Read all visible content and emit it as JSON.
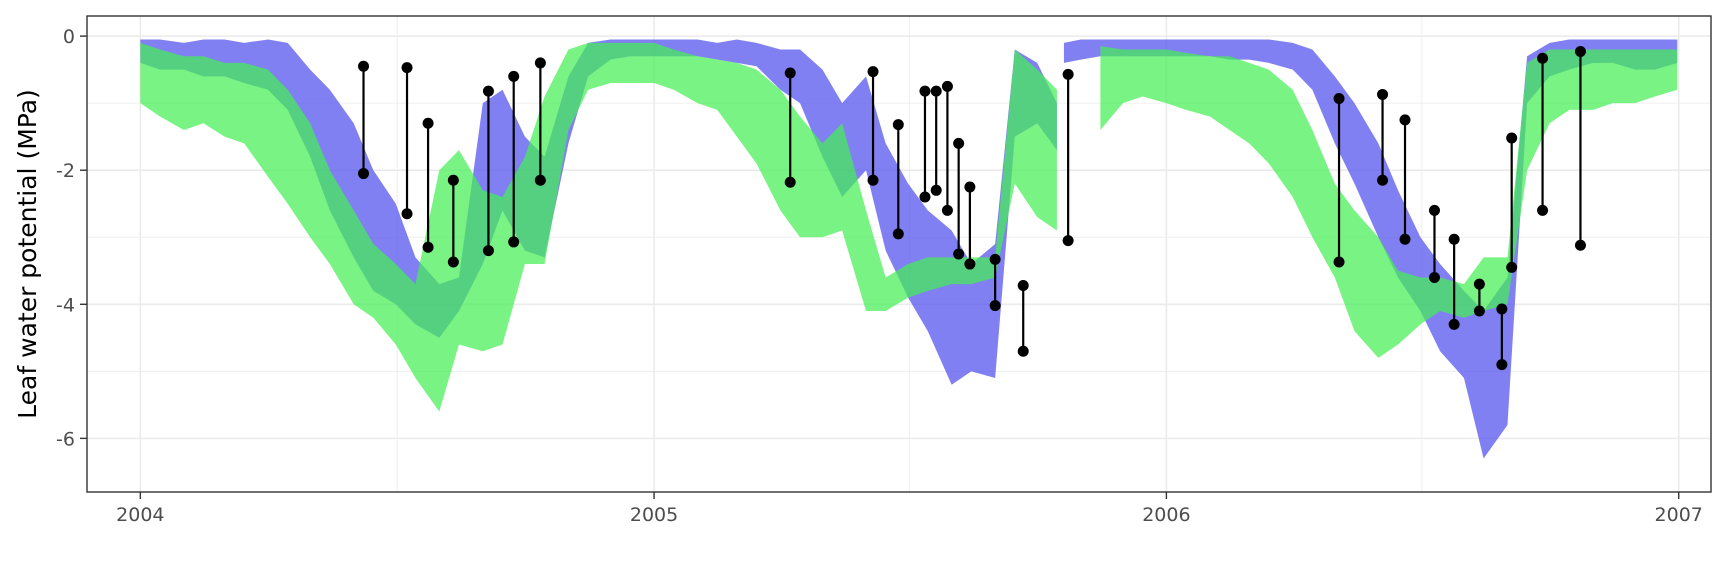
{
  "chart_data": {
    "type": "area",
    "title": "",
    "xlabel": "",
    "ylabel": "Leaf water potential (MPa)",
    "xlim": [
      "2003-11-24",
      "2007-01-24"
    ],
    "ylim": [
      -6.8,
      0.3
    ],
    "x_ticks": [
      "2004",
      "2005",
      "2006",
      "2007"
    ],
    "y_ticks": [
      0,
      -2,
      -4,
      -6
    ],
    "grid": true,
    "legend": "none",
    "colors": {
      "series_a": "#5555ee",
      "series_b": "#44ee55",
      "points": "#000000",
      "grid": "#ebebeb",
      "panel_border": "#333333"
    },
    "series": [
      {
        "color": "#5555ee",
        "segments": [
          {
            "dates": [
              "2004-01-01",
              "2004-01-15",
              "2004-02-01",
              "2004-02-15",
              "2004-03-01",
              "2004-03-15",
              "2004-04-01",
              "2004-04-15",
              "2004-05-01",
              "2004-05-15",
              "2004-06-01",
              "2004-06-15",
              "2004-07-01",
              "2004-07-15",
              "2004-08-01",
              "2004-08-15",
              "2004-09-01",
              "2004-09-15",
              "2004-10-01",
              "2004-10-15",
              "2004-11-01",
              "2004-11-15",
              "2004-12-01",
              "2004-12-15",
              "2005-01-01",
              "2005-01-15",
              "2005-02-01",
              "2005-02-15",
              "2005-03-01",
              "2005-03-15",
              "2005-04-01",
              "2005-04-15",
              "2005-05-01",
              "2005-05-15",
              "2005-06-01",
              "2005-06-15",
              "2005-07-01",
              "2005-07-15",
              "2005-08-01",
              "2005-08-15",
              "2005-09-01",
              "2005-09-15",
              "2005-10-01",
              "2005-10-15"
            ],
            "upper": [
              -0.05,
              -0.05,
              -0.1,
              -0.05,
              -0.05,
              -0.1,
              -0.05,
              -0.1,
              -0.5,
              -0.8,
              -1.3,
              -2.0,
              -2.5,
              -3.3,
              -3.7,
              -3.6,
              -1.0,
              -0.8,
              -1.5,
              -1.8,
              -0.6,
              -0.1,
              -0.05,
              -0.05,
              -0.05,
              -0.05,
              -0.05,
              -0.1,
              -0.05,
              -0.1,
              -0.2,
              -0.2,
              -0.5,
              -1.0,
              -0.6,
              -1.6,
              -2.2,
              -2.6,
              -2.9,
              -3.4,
              -3.1,
              -0.2,
              -0.4,
              -1.0
            ],
            "lower": [
              -0.4,
              -0.5,
              -0.5,
              -0.6,
              -0.6,
              -0.7,
              -0.8,
              -1.1,
              -1.8,
              -2.6,
              -3.3,
              -3.8,
              -4.0,
              -4.3,
              -4.5,
              -4.1,
              -3.4,
              -2.6,
              -3.2,
              -3.3,
              -1.6,
              -0.6,
              -0.35,
              -0.3,
              -0.3,
              -0.3,
              -0.3,
              -0.35,
              -0.4,
              -0.45,
              -0.8,
              -1.0,
              -1.8,
              -2.4,
              -2.0,
              -3.2,
              -3.9,
              -4.4,
              -5.2,
              -5.0,
              -5.1,
              -1.5,
              -1.3,
              -1.7
            ]
          },
          {
            "dates": [
              "2005-10-20",
              "2005-11-01",
              "2005-11-15",
              "2005-12-01",
              "2005-12-15",
              "2006-01-01",
              "2006-01-15",
              "2006-02-01",
              "2006-02-15",
              "2006-03-01",
              "2006-03-15",
              "2006-04-01",
              "2006-04-15",
              "2006-05-01",
              "2006-05-15",
              "2006-06-01",
              "2006-06-15",
              "2006-07-01",
              "2006-07-15",
              "2006-08-01",
              "2006-08-15",
              "2006-09-01",
              "2006-09-15",
              "2006-10-01",
              "2006-10-15",
              "2006-11-01",
              "2006-11-15",
              "2006-12-01",
              "2006-12-15",
              "2006-12-31"
            ],
            "upper": [
              -0.1,
              -0.05,
              -0.05,
              -0.05,
              -0.05,
              -0.05,
              -0.05,
              -0.05,
              -0.05,
              -0.05,
              -0.05,
              -0.1,
              -0.2,
              -0.6,
              -1.0,
              -1.6,
              -2.3,
              -3.0,
              -3.4,
              -3.8,
              -4.1,
              -3.6,
              -0.3,
              -0.1,
              -0.05,
              -0.05,
              -0.05,
              -0.05,
              -0.05,
              -0.05
            ],
            "lower": [
              -0.4,
              -0.35,
              -0.3,
              -0.3,
              -0.3,
              -0.3,
              -0.3,
              -0.3,
              -0.35,
              -0.35,
              -0.4,
              -0.5,
              -0.8,
              -1.6,
              -2.2,
              -3.0,
              -3.6,
              -4.1,
              -4.7,
              -5.1,
              -6.3,
              -5.8,
              -1.0,
              -0.6,
              -0.5,
              -0.4,
              -0.4,
              -0.5,
              -0.5,
              -0.4
            ]
          }
        ]
      },
      {
        "color": "#44ee55",
        "segments": [
          {
            "dates": [
              "2004-01-01",
              "2004-01-15",
              "2004-02-01",
              "2004-02-15",
              "2004-03-01",
              "2004-03-15",
              "2004-04-01",
              "2004-04-15",
              "2004-05-01",
              "2004-05-15",
              "2004-06-01",
              "2004-06-15",
              "2004-07-01",
              "2004-07-15",
              "2004-08-01",
              "2004-08-15",
              "2004-09-01",
              "2004-09-15",
              "2004-10-01",
              "2004-10-15",
              "2004-11-01",
              "2004-11-15",
              "2004-12-01",
              "2004-12-15",
              "2005-01-01",
              "2005-01-15",
              "2005-02-01",
              "2005-02-15",
              "2005-03-01",
              "2005-03-15",
              "2005-04-01",
              "2005-04-15",
              "2005-05-01",
              "2005-05-15",
              "2005-06-01",
              "2005-06-15",
              "2005-07-01",
              "2005-07-15",
              "2005-08-01",
              "2005-08-15",
              "2005-09-01",
              "2005-09-15",
              "2005-10-01",
              "2005-10-15"
            ],
            "upper": [
              -0.1,
              -0.2,
              -0.3,
              -0.3,
              -0.4,
              -0.4,
              -0.5,
              -0.8,
              -1.3,
              -2.0,
              -2.6,
              -3.1,
              -3.4,
              -3.7,
              -2.0,
              -1.7,
              -2.3,
              -2.4,
              -1.8,
              -0.9,
              -0.2,
              -0.1,
              -0.1,
              -0.1,
              -0.1,
              -0.2,
              -0.3,
              -0.35,
              -0.4,
              -0.5,
              -0.8,
              -1.2,
              -1.6,
              -1.3,
              -2.6,
              -3.6,
              -3.4,
              -3.3,
              -3.3,
              -3.3,
              -3.3,
              -0.2,
              -0.5,
              -0.8
            ],
            "lower": [
              -1.0,
              -1.2,
              -1.4,
              -1.3,
              -1.5,
              -1.6,
              -2.1,
              -2.5,
              -3.0,
              -3.4,
              -4.0,
              -4.2,
              -4.6,
              -5.1,
              -5.6,
              -4.6,
              -4.7,
              -4.6,
              -3.4,
              -3.4,
              -1.4,
              -0.8,
              -0.7,
              -0.7,
              -0.7,
              -0.8,
              -1.0,
              -1.1,
              -1.5,
              -1.9,
              -2.6,
              -3.0,
              -3.0,
              -2.9,
              -4.1,
              -4.1,
              -3.9,
              -3.8,
              -3.7,
              -3.7,
              -3.6,
              -2.2,
              -2.7,
              -2.9
            ]
          },
          {
            "dates": [
              "2005-11-15",
              "2005-12-01",
              "2005-12-15",
              "2006-01-01",
              "2006-01-15",
              "2006-02-01",
              "2006-02-15",
              "2006-03-01",
              "2006-03-15",
              "2006-04-01",
              "2006-04-15",
              "2006-05-01",
              "2006-05-15",
              "2006-06-01",
              "2006-06-15",
              "2006-07-01",
              "2006-07-15",
              "2006-08-01",
              "2006-08-15",
              "2006-09-01",
              "2006-09-15",
              "2006-10-01",
              "2006-10-15",
              "2006-11-01",
              "2006-11-15",
              "2006-12-01",
              "2006-12-15",
              "2006-12-31"
            ],
            "upper": [
              -0.15,
              -0.2,
              -0.2,
              -0.2,
              -0.25,
              -0.3,
              -0.3,
              -0.4,
              -0.5,
              -0.8,
              -1.4,
              -2.2,
              -2.6,
              -3.0,
              -3.5,
              -3.6,
              -3.6,
              -3.7,
              -3.3,
              -3.3,
              -0.4,
              -0.2,
              -0.2,
              -0.2,
              -0.2,
              -0.2,
              -0.2,
              -0.2
            ],
            "lower": [
              -1.4,
              -1.0,
              -0.9,
              -1.0,
              -1.1,
              -1.2,
              -1.4,
              -1.6,
              -1.9,
              -2.4,
              -3.0,
              -3.6,
              -4.4,
              -4.8,
              -4.6,
              -4.3,
              -4.1,
              -4.2,
              -4.1,
              -4.0,
              -2.0,
              -1.3,
              -1.1,
              -1.1,
              -1.0,
              -1.0,
              -0.9,
              -0.8
            ]
          }
        ]
      }
    ],
    "observations": [
      {
        "date": "2004-06-08",
        "predawn": -0.45,
        "midday": -2.05
      },
      {
        "date": "2004-07-09",
        "predawn": -0.47,
        "midday": -2.65
      },
      {
        "date": "2004-07-24",
        "predawn": -1.3,
        "midday": -3.15
      },
      {
        "date": "2004-08-11",
        "predawn": -2.15,
        "midday": -3.37
      },
      {
        "date": "2004-09-05",
        "predawn": -0.82,
        "midday": -3.2
      },
      {
        "date": "2004-09-23",
        "predawn": -0.6,
        "midday": -3.07
      },
      {
        "date": "2004-10-12",
        "predawn": -0.4,
        "midday": -2.15
      },
      {
        "date": "2005-04-08",
        "predawn": -0.55,
        "midday": -2.18
      },
      {
        "date": "2005-06-06",
        "predawn": -0.53,
        "midday": -2.15
      },
      {
        "date": "2005-06-24",
        "predawn": -1.32,
        "midday": -2.95
      },
      {
        "date": "2005-07-13",
        "predawn": -0.82,
        "midday": -2.4
      },
      {
        "date": "2005-07-21",
        "predawn": -0.82,
        "midday": -2.3
      },
      {
        "date": "2005-07-29",
        "predawn": -0.75,
        "midday": -2.6
      },
      {
        "date": "2005-08-06",
        "predawn": -1.6,
        "midday": -3.25
      },
      {
        "date": "2005-08-14",
        "predawn": -2.25,
        "midday": -3.4
      },
      {
        "date": "2005-09-01",
        "predawn": -3.33,
        "midday": -4.02
      },
      {
        "date": "2005-09-21",
        "predawn": -3.72,
        "midday": -4.7
      },
      {
        "date": "2005-10-23",
        "predawn": -0.57,
        "midday": -3.05
      },
      {
        "date": "2006-05-04",
        "predawn": -0.93,
        "midday": -3.37
      },
      {
        "date": "2006-06-04",
        "predawn": -0.87,
        "midday": -2.15
      },
      {
        "date": "2006-06-20",
        "predawn": -1.25,
        "midday": -3.03
      },
      {
        "date": "2006-07-11",
        "predawn": -2.6,
        "midday": -3.6
      },
      {
        "date": "2006-07-25",
        "predawn": -3.03,
        "midday": -4.3
      },
      {
        "date": "2006-08-12",
        "predawn": -3.7,
        "midday": -4.1
      },
      {
        "date": "2006-08-28",
        "predawn": -4.07,
        "midday": -4.9
      },
      {
        "date": "2006-09-04",
        "predawn": -1.52,
        "midday": -3.45
      },
      {
        "date": "2006-09-26",
        "predawn": -0.33,
        "midday": -2.6
      },
      {
        "date": "2006-10-23",
        "predawn": -0.23,
        "midday": -3.12
      }
    ]
  }
}
